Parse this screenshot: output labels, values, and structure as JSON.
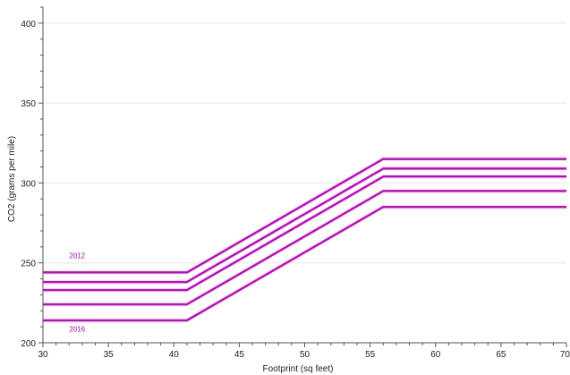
{
  "chart_data": {
    "type": "line",
    "title": "",
    "xlabel": "Footprint (sq feet)",
    "ylabel": "CO2 (grams per mile)",
    "xlim": [
      30,
      70
    ],
    "ylim": [
      200,
      410
    ],
    "xticks": [
      30,
      35,
      40,
      45,
      50,
      55,
      60,
      65,
      70
    ],
    "yticks": [
      200,
      250,
      300,
      350,
      400
    ],
    "grid": "horizontal",
    "line_color": "#cc00cc",
    "annotations": [
      {
        "text": "2012",
        "x": 32,
        "y": 253
      },
      {
        "text": "2016",
        "x": 32,
        "y": 207
      }
    ],
    "series": [
      {
        "x": [
          30,
          41,
          56,
          70
        ],
        "y": [
          244,
          244,
          315,
          315
        ]
      },
      {
        "x": [
          30,
          41,
          56,
          70
        ],
        "y": [
          238,
          238,
          309,
          309
        ]
      },
      {
        "x": [
          30,
          41,
          56,
          70
        ],
        "y": [
          233,
          233,
          304,
          304
        ]
      },
      {
        "x": [
          30,
          41,
          56,
          70
        ],
        "y": [
          224,
          224,
          295,
          295
        ]
      },
      {
        "x": [
          30,
          41,
          56,
          70
        ],
        "y": [
          214,
          214,
          285,
          285
        ]
      }
    ]
  }
}
